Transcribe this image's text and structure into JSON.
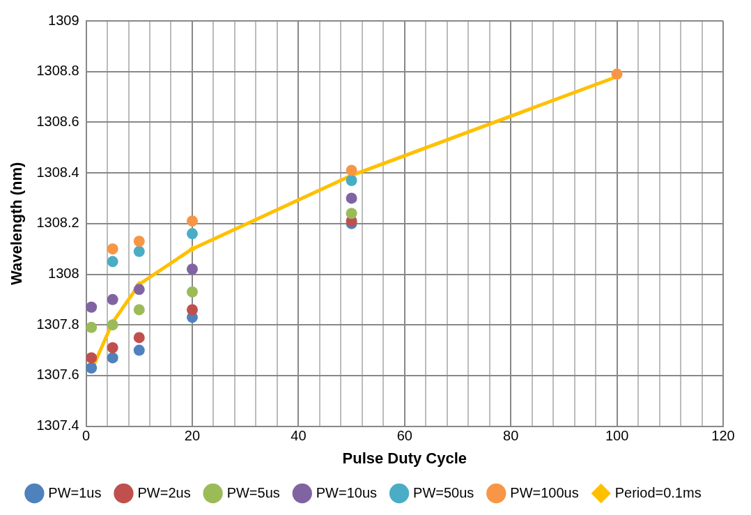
{
  "chart_data": {
    "type": "scatter",
    "xlabel": "Pulse Duty Cycle",
    "ylabel": "Wavelength (nm)",
    "xlim": [
      0,
      120
    ],
    "xticks": [
      0,
      {
        "value": 4,
        "label": null
      },
      {
        "value": 8,
        "label": null
      },
      {
        "value": 12,
        "label": null
      },
      {
        "value": 16,
        "label": null
      },
      20,
      {
        "value": 24,
        "label": null
      },
      {
        "value": 28,
        "label": null
      },
      {
        "value": 32,
        "label": null
      },
      {
        "value": 36,
        "label": null
      },
      40,
      {
        "value": 44,
        "label": null
      },
      {
        "value": 48,
        "label": null
      },
      {
        "value": 52,
        "label": null
      },
      {
        "value": 56,
        "label": null
      },
      60,
      {
        "value": 64,
        "label": null
      },
      {
        "value": 68,
        "label": null
      },
      {
        "value": 72,
        "label": null
      },
      {
        "value": 76,
        "label": null
      },
      80,
      {
        "value": 84,
        "label": null
      },
      {
        "value": 88,
        "label": null
      },
      {
        "value": 92,
        "label": null
      },
      {
        "value": 96,
        "label": null
      },
      100,
      {
        "value": 104,
        "label": null
      },
      {
        "value": 108,
        "label": null
      },
      {
        "value": 112,
        "label": null
      },
      {
        "value": 116,
        "label": null
      },
      120
    ],
    "ylim": [
      1307.4,
      1309
    ],
    "yticks": [
      1307.4,
      1307.6,
      1307.8,
      1308,
      1308.2,
      1308.4,
      1308.6,
      1308.8,
      1309
    ],
    "grid": true,
    "legend": "bottom",
    "marker": "circle",
    "series": [
      {
        "name": "PW=1us",
        "color": "#4f81bd",
        "x": [
          1,
          5,
          10,
          20,
          50
        ],
        "values": [
          1307.63,
          1307.67,
          1307.7,
          1307.83,
          1308.2
        ]
      },
      {
        "name": "PW=2us",
        "color": "#c0504d",
        "x": [
          1,
          5,
          10,
          20,
          50
        ],
        "values": [
          1307.67,
          1307.71,
          1307.75,
          1307.86,
          1308.21
        ]
      },
      {
        "name": "PW=5us",
        "color": "#9bbb59",
        "x": [
          1,
          5,
          10,
          20,
          50
        ],
        "values": [
          1307.79,
          1307.8,
          1307.86,
          1307.93,
          1308.24
        ]
      },
      {
        "name": "PW=10us",
        "color": "#8064a2",
        "x": [
          1,
          5,
          10,
          20,
          50
        ],
        "values": [
          1307.87,
          1307.9,
          1307.94,
          1308.02,
          1308.3
        ]
      },
      {
        "name": "PW=50us",
        "color": "#4bacc6",
        "x": [
          5,
          10,
          20,
          50
        ],
        "values": [
          1308.05,
          1308.09,
          1308.16,
          1308.37
        ]
      },
      {
        "name": "PW=100us",
        "color": "#f79646",
        "x": [
          5,
          10,
          20,
          50,
          100
        ],
        "values": [
          1308.1,
          1308.13,
          1308.21,
          1308.41,
          1308.79
        ]
      },
      {
        "name": "Period=0.1ms",
        "type": "line",
        "marker": "diamond",
        "color": "#ffc000",
        "x": [
          1,
          5,
          10,
          20,
          50,
          100
        ],
        "values": [
          1307.62,
          1307.81,
          1307.96,
          1308.1,
          1308.39,
          1308.78
        ]
      }
    ]
  }
}
